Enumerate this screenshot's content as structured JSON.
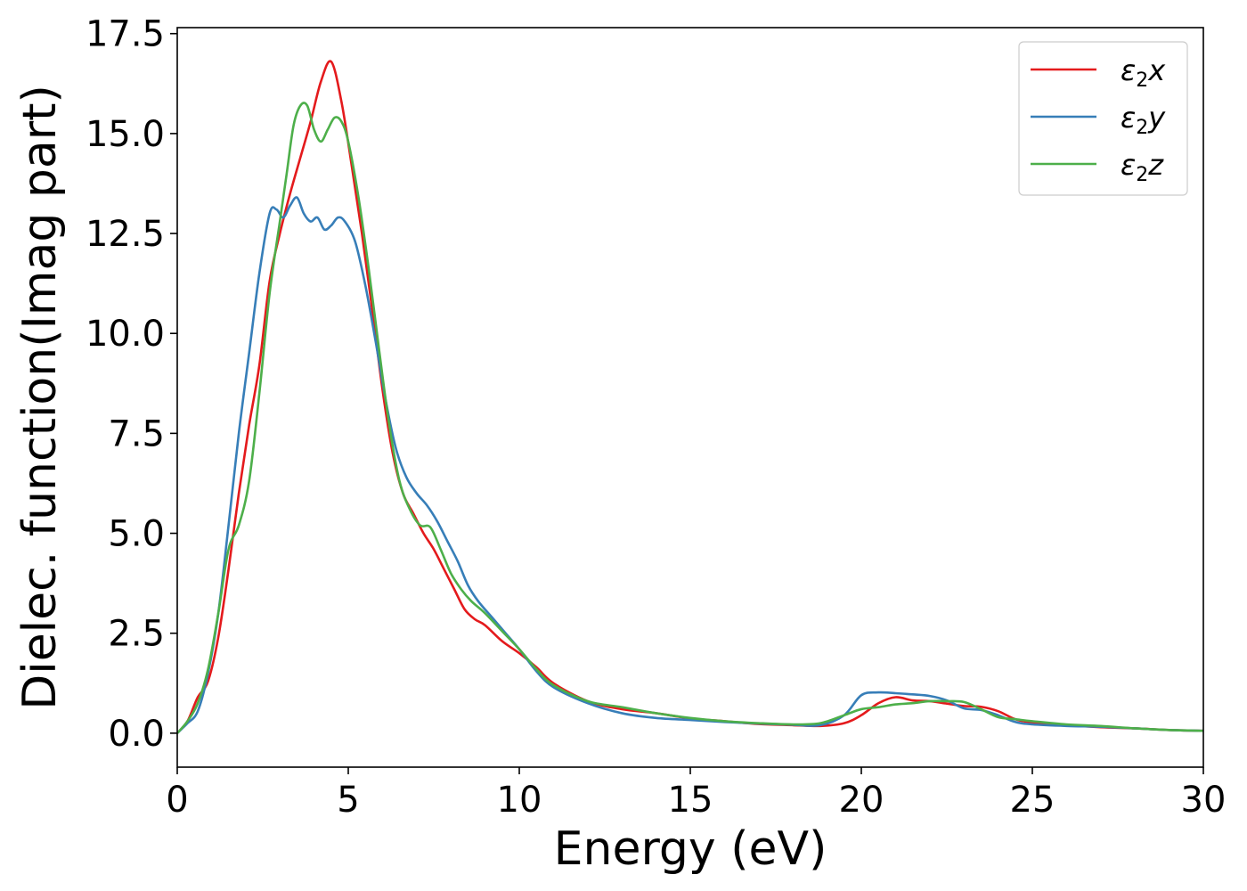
{
  "chart_data": {
    "type": "line",
    "title": "",
    "xlabel": "Energy (eV)",
    "ylabel": "Dielec. function(Imag part)",
    "xlim": [
      0,
      30
    ],
    "ylim": [
      -0.85,
      17.65
    ],
    "xticks": [
      0,
      5,
      10,
      15,
      20,
      25,
      30
    ],
    "xtick_labels": [
      "0",
      "5",
      "10",
      "15",
      "20",
      "25",
      "30"
    ],
    "yticks": [
      0,
      2.5,
      5,
      7.5,
      10,
      12.5,
      15,
      17.5
    ],
    "ytick_labels": [
      "0.0",
      "2.5",
      "5.0",
      "7.5",
      "10.0",
      "12.5",
      "15.0",
      "17.5"
    ],
    "grid": false,
    "legend_position": "top-right",
    "series": [
      {
        "name": "ε₂x",
        "legend_main": "ε",
        "legend_sub": "2",
        "legend_var": "x",
        "color": "#e41a1c",
        "x": [
          0,
          0.3,
          0.6,
          0.9,
          1.2,
          1.5,
          1.8,
          2.1,
          2.4,
          2.7,
          3.0,
          3.3,
          3.6,
          3.9,
          4.2,
          4.5,
          4.8,
          5.1,
          5.4,
          5.7,
          6.0,
          6.3,
          6.6,
          6.9,
          7.2,
          7.5,
          7.8,
          8.1,
          8.4,
          8.7,
          9.0,
          9.5,
          10.0,
          10.5,
          11.0,
          12.0,
          13.0,
          14.0,
          15.0,
          16.0,
          17.0,
          18.0,
          18.8,
          19.5,
          20.0,
          20.5,
          21.0,
          21.5,
          22.0,
          22.5,
          23.0,
          23.5,
          24.0,
          24.5,
          25.0,
          26.0,
          27.0,
          28.0,
          29.0,
          30.0
        ],
        "y": [
          0.0,
          0.3,
          0.9,
          1.3,
          2.4,
          4.1,
          6.0,
          7.7,
          9.2,
          11.3,
          12.5,
          13.5,
          14.4,
          15.3,
          16.3,
          16.8,
          15.8,
          14.2,
          12.5,
          10.6,
          8.6,
          7.0,
          6.0,
          5.5,
          5.0,
          4.6,
          4.1,
          3.6,
          3.1,
          2.85,
          2.7,
          2.3,
          2.0,
          1.65,
          1.25,
          0.8,
          0.6,
          0.5,
          0.37,
          0.3,
          0.23,
          0.2,
          0.18,
          0.25,
          0.45,
          0.75,
          0.9,
          0.82,
          0.8,
          0.74,
          0.68,
          0.66,
          0.55,
          0.35,
          0.27,
          0.2,
          0.15,
          0.12,
          0.08,
          0.06
        ]
      },
      {
        "name": "ε₂y",
        "legend_main": "ε",
        "legend_sub": "2",
        "legend_var": "y",
        "color": "#377eb8",
        "x": [
          0,
          0.3,
          0.6,
          0.9,
          1.2,
          1.5,
          1.8,
          2.1,
          2.4,
          2.7,
          2.9,
          3.1,
          3.3,
          3.5,
          3.7,
          3.9,
          4.1,
          4.3,
          4.5,
          4.7,
          4.9,
          5.2,
          5.5,
          5.8,
          6.1,
          6.4,
          6.7,
          7.0,
          7.3,
          7.6,
          7.9,
          8.2,
          8.5,
          8.8,
          9.2,
          9.6,
          10.0,
          10.5,
          11.0,
          12.0,
          13.0,
          14.0,
          15.0,
          16.0,
          17.0,
          18.0,
          18.8,
          19.5,
          20.0,
          20.5,
          21.0,
          21.5,
          22.0,
          22.5,
          23.0,
          23.5,
          24.0,
          24.5,
          25.0,
          26.0,
          27.0,
          28.0,
          29.0,
          30.0
        ],
        "y": [
          0.0,
          0.25,
          0.55,
          1.5,
          3.0,
          5.2,
          7.5,
          9.5,
          11.5,
          13.0,
          13.1,
          12.9,
          13.2,
          13.4,
          13.0,
          12.8,
          12.9,
          12.6,
          12.7,
          12.9,
          12.8,
          12.3,
          11.2,
          9.8,
          8.3,
          7.1,
          6.4,
          6.0,
          5.7,
          5.3,
          4.8,
          4.3,
          3.7,
          3.3,
          2.9,
          2.5,
          2.1,
          1.55,
          1.15,
          0.75,
          0.5,
          0.38,
          0.33,
          0.28,
          0.24,
          0.21,
          0.2,
          0.45,
          0.95,
          1.02,
          1.0,
          0.97,
          0.93,
          0.82,
          0.62,
          0.58,
          0.45,
          0.28,
          0.22,
          0.18,
          0.16,
          0.12,
          0.08,
          0.06
        ]
      },
      {
        "name": "ε₂z",
        "legend_main": "ε",
        "legend_sub": "2",
        "legend_var": "z",
        "color": "#4daf4a",
        "x": [
          0,
          0.3,
          0.6,
          0.9,
          1.2,
          1.5,
          1.8,
          2.1,
          2.4,
          2.7,
          3.0,
          3.2,
          3.4,
          3.6,
          3.8,
          4.0,
          4.2,
          4.4,
          4.6,
          4.8,
          5.0,
          5.3,
          5.6,
          5.9,
          6.2,
          6.5,
          6.8,
          7.1,
          7.4,
          7.7,
          8.0,
          8.3,
          8.6,
          9.0,
          9.5,
          10.0,
          10.5,
          11.0,
          12.0,
          13.0,
          14.0,
          15.0,
          16.0,
          17.0,
          18.0,
          18.8,
          19.5,
          20.0,
          20.5,
          21.0,
          21.5,
          22.0,
          22.5,
          23.0,
          23.5,
          24.0,
          24.5,
          25.0,
          26.0,
          27.0,
          28.0,
          29.0,
          30.0
        ],
        "y": [
          0.0,
          0.3,
          0.75,
          1.6,
          3.0,
          4.6,
          5.2,
          6.3,
          8.5,
          11.0,
          12.8,
          14.0,
          15.2,
          15.7,
          15.7,
          15.1,
          14.8,
          15.1,
          15.4,
          15.3,
          14.8,
          13.4,
          11.6,
          9.6,
          7.7,
          6.3,
          5.6,
          5.2,
          5.15,
          4.6,
          4.0,
          3.6,
          3.3,
          3.0,
          2.55,
          2.1,
          1.6,
          1.2,
          0.8,
          0.65,
          0.5,
          0.38,
          0.3,
          0.25,
          0.22,
          0.25,
          0.45,
          0.6,
          0.65,
          0.72,
          0.75,
          0.8,
          0.8,
          0.78,
          0.6,
          0.4,
          0.35,
          0.3,
          0.22,
          0.18,
          0.12,
          0.08,
          0.06
        ]
      }
    ]
  }
}
